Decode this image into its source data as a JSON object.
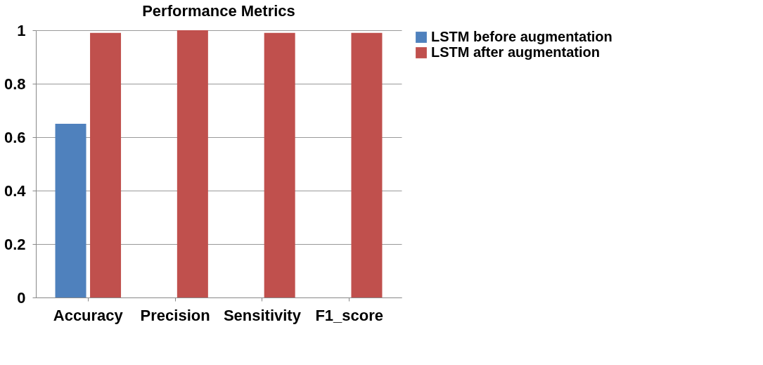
{
  "chart_data": {
    "type": "bar",
    "title": "Performance Metrics",
    "categories": [
      "Accuracy",
      "Precision",
      "Sensitivity",
      "F1_score"
    ],
    "series": [
      {
        "name": "LSTM before augmentation",
        "color": "#4f81bd",
        "values": [
          0.65,
          0,
          0,
          0
        ]
      },
      {
        "name": "LSTM after augmentation",
        "color": "#c0504d",
        "values": [
          0.99,
          1,
          0.99,
          0.99
        ]
      }
    ],
    "ylim": [
      0,
      1
    ],
    "yticks": [
      0,
      0.2,
      0.4,
      0.6,
      0.8,
      1
    ],
    "grid": "y",
    "legend": "right"
  }
}
